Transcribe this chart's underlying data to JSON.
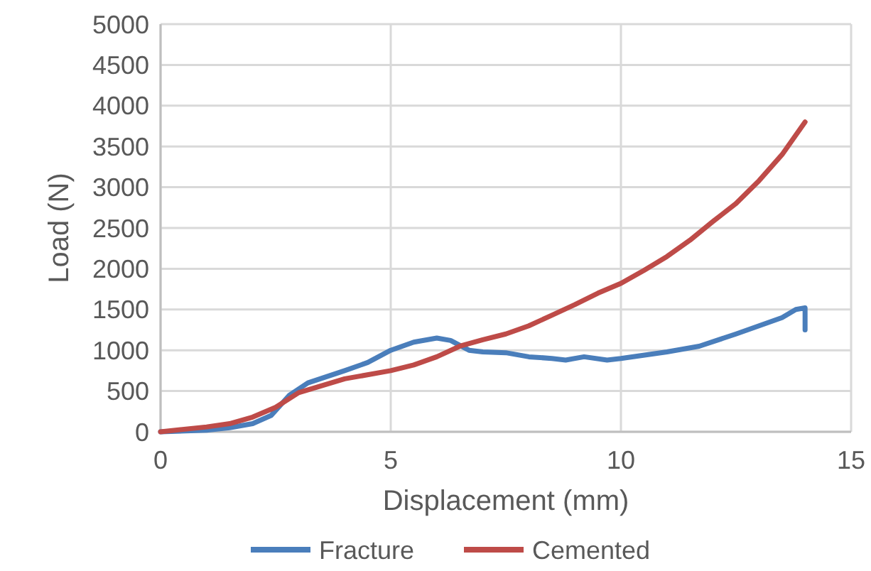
{
  "chart_data": {
    "type": "line",
    "xlabel": "Displacement (mm)",
    "ylabel": "Load (N)",
    "xlim": [
      0,
      15
    ],
    "xticks": [
      0,
      5,
      10,
      15
    ],
    "ylim": [
      0,
      5000
    ],
    "yticks": [
      0,
      500,
      1000,
      1500,
      2000,
      2500,
      3000,
      3500,
      4000,
      4500,
      5000
    ],
    "grid": true,
    "legend": "bottom",
    "x": [
      0,
      1,
      1.5,
      2,
      2.4,
      2.8,
      3.2,
      4,
      4.5,
      5,
      5.5,
      6,
      6.3,
      6.7,
      7,
      7.5,
      8,
      8.5,
      8.8,
      9.2,
      9.7,
      10,
      11,
      11.7,
      12.5,
      13,
      13.5,
      13.8,
      14,
      14
    ],
    "series": [
      {
        "name": "Fracture",
        "color": "#4a7ebb",
        "values": [
          0,
          20,
          50,
          100,
          200,
          450,
          600,
          750,
          850,
          1000,
          1100,
          1150,
          1120,
          1000,
          980,
          970,
          920,
          900,
          880,
          920,
          880,
          900,
          980,
          1050,
          1200,
          1300,
          1400,
          1500,
          1520,
          1250
        ]
      },
      {
        "name": "Cemented",
        "color": "#be4b48",
        "x": [
          0,
          1,
          1.5,
          2,
          2.5,
          3,
          4,
          5,
          5.5,
          6,
          6.5,
          7,
          7.5,
          8,
          8.5,
          9,
          9.5,
          10,
          10.5,
          11,
          11.5,
          12,
          12.5,
          13,
          13.5,
          14
        ],
        "values": [
          0,
          60,
          100,
          180,
          300,
          480,
          650,
          750,
          820,
          920,
          1050,
          1130,
          1200,
          1300,
          1430,
          1560,
          1700,
          1820,
          1980,
          2150,
          2350,
          2580,
          2800,
          3080,
          3400,
          3800
        ]
      }
    ]
  }
}
